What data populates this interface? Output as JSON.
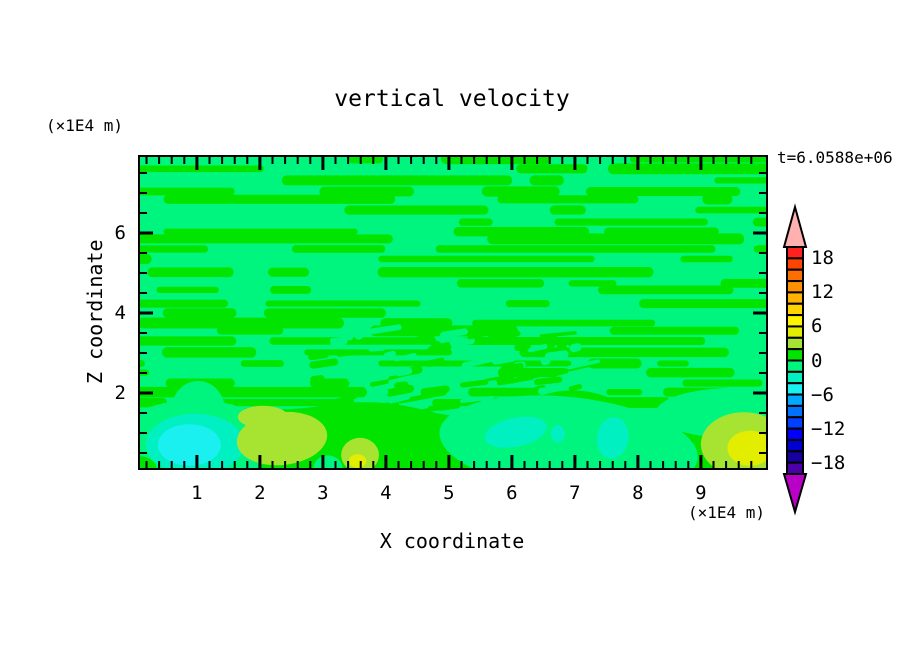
{
  "title": "vertical velocity",
  "time_annotation": "t=6.0588e+06",
  "axes": {
    "x": {
      "label": "X coordinate",
      "unit": "(×1E4 m)",
      "range": [
        0.065,
        10.065
      ],
      "major_ticks": [
        1,
        2,
        3,
        4,
        5,
        6,
        7,
        8,
        9
      ],
      "minor_step": 0.2
    },
    "z": {
      "label": "Z coordinate",
      "unit": "(×1E4 m)",
      "range": [
        0.075,
        7.95
      ],
      "major_ticks": [
        2,
        4,
        6
      ],
      "minor_step": 0.5
    }
  },
  "colorbar": {
    "level_min": -20,
    "level_max": 20,
    "level_step": 2,
    "ticks": [
      {
        "value": 18,
        "label": "18"
      },
      {
        "value": 12,
        "label": "12"
      },
      {
        "value": 6,
        "label": "6"
      },
      {
        "value": 0,
        "label": "0"
      },
      {
        "value": -6,
        "label": "−6"
      },
      {
        "value": -12,
        "label": "−12"
      },
      {
        "value": -18,
        "label": "−18"
      }
    ],
    "colors_top_to_bottom": [
      "#FF2020",
      "#FF4300",
      "#FF6E00",
      "#FF9000",
      "#FFB200",
      "#FFD300",
      "#FFF400",
      "#E3ED00",
      "#A7E432",
      "#00E400",
      "#00F57E",
      "#00F0C2",
      "#1AF0F0",
      "#00A9FF",
      "#0072FF",
      "#0040FF",
      "#0000FA",
      "#0000D0",
      "#16009E",
      "#4C00A8"
    ],
    "over_color": "#FFB0B0",
    "under_color": "#B800C6"
  },
  "chart_data": {
    "type": "heatmap",
    "subtype": "filled_contour",
    "title": "vertical velocity",
    "time": "t=6.0588e+06",
    "xlabel": "X coordinate (×1E4 m)",
    "ylabel": "Z coordinate (×1E4 m)",
    "x_range": [
      0.065,
      10.065
    ],
    "z_range": [
      0.075,
      7.95
    ],
    "contour_interval": 2,
    "value_range_shown": [
      -20,
      20
    ],
    "background_band_value": [
      -2,
      0
    ],
    "streak_band_value": [
      0,
      2
    ],
    "description": "Mostly near-zero field: spring-green background (-2..0) with horizontal bright-green streaks (0..2) above z≈2; fragmented speckle zone near x=3..7, z=1.5..3; bright-green band (0..2) below z≈1.5 containing stronger up/downdraft blobs.",
    "features": [
      {
        "name": "spring-ring-bl",
        "x": 0.97,
        "z": 0.78,
        "rx": 1.27,
        "rz": 1.05,
        "rot": 0,
        "level": -1
      },
      {
        "name": "spring-plume-bl",
        "x": 1.02,
        "z": 1.6,
        "rx": 0.42,
        "rz": 0.7,
        "rot": 0,
        "level": -1
      },
      {
        "name": "spring-swath-mid",
        "x": 6.9,
        "z": 0.7,
        "rx": 2.06,
        "rz": 1.2,
        "rot": 6,
        "level": -1
      },
      {
        "name": "spring-band-right",
        "x": 9.55,
        "z": 1.5,
        "rx": 1.27,
        "rz": 0.63,
        "rot": 0,
        "level": -1
      },
      {
        "name": "spring-dome",
        "x": 3.08,
        "z": 0.12,
        "rx": 0.23,
        "rz": 0.32,
        "rot": 0,
        "level": -1
      },
      {
        "name": "green-corner-bl",
        "x": 0.08,
        "z": 0.1,
        "rx": 0.28,
        "rz": 0.32,
        "rot": 0,
        "level": 1
      },
      {
        "name": "turquoise-bl",
        "x": 0.97,
        "z": 0.72,
        "rx": 0.78,
        "rz": 0.76,
        "rot": 0,
        "level": -3
      },
      {
        "name": "cyan-bl",
        "x": 0.88,
        "z": 0.7,
        "rx": 0.5,
        "rz": 0.52,
        "rot": 0,
        "level": -5
      },
      {
        "name": "chartreuse-1",
        "x": 2.35,
        "z": 0.86,
        "rx": 0.72,
        "rz": 0.66,
        "rot": -6,
        "level": 3
      },
      {
        "name": "chartreuse-1-bump",
        "x": 2.05,
        "z": 1.4,
        "rx": 0.4,
        "rz": 0.28,
        "rot": 0,
        "level": 3
      },
      {
        "name": "chartreuse-2",
        "x": 3.59,
        "z": 0.45,
        "rx": 0.3,
        "rz": 0.43,
        "rot": 0,
        "level": 3
      },
      {
        "name": "yellow-dot",
        "x": 3.55,
        "z": 0.3,
        "rx": 0.14,
        "rz": 0.17,
        "rot": 0,
        "level": 5
      },
      {
        "name": "turquoise-mid",
        "x": 6.06,
        "z": 1.02,
        "rx": 0.5,
        "rz": 0.36,
        "rot": -12,
        "level": -3
      },
      {
        "name": "turquoise-dot",
        "x": 6.73,
        "z": 0.98,
        "rx": 0.11,
        "rz": 0.22,
        "rot": 0,
        "level": -3
      },
      {
        "name": "turquoise-oval",
        "x": 7.6,
        "z": 0.88,
        "rx": 0.25,
        "rz": 0.52,
        "rot": 8,
        "level": -3
      },
      {
        "name": "chartreuse-br",
        "x": 9.68,
        "z": 0.72,
        "rx": 0.68,
        "rz": 0.8,
        "rot": 0,
        "level": 3
      },
      {
        "name": "yellowgreen-br",
        "x": 9.78,
        "z": 0.62,
        "rx": 0.36,
        "rz": 0.44,
        "rot": 0,
        "level": 5
      }
    ],
    "texture": {
      "seed": 11,
      "streak_rows": 25,
      "streak_zone_z": [
        1.7,
        7.95
      ],
      "noise_zone": {
        "x": [
          2.7,
          7.1
        ],
        "z": [
          1.5,
          3.6
        ],
        "count": 85
      },
      "band_top_z": 1.55
    }
  }
}
